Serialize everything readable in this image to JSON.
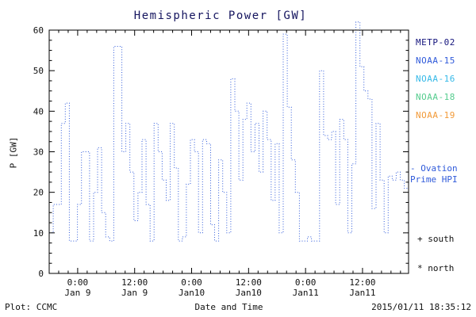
{
  "chart_data": {
    "type": "line",
    "style": "dotted-step-line",
    "title": "Hemispheric Power [GW]",
    "xlabel": "Date and Time",
    "ylabel": "P [GW]",
    "ylim": [
      0,
      60
    ],
    "y_ticks": [
      0,
      10,
      20,
      30,
      40,
      50,
      60
    ],
    "grid": false,
    "legend_position": "right",
    "x_range_hours": [
      0,
      75.7
    ],
    "x_ticks": [
      {
        "hour": 6,
        "time": "0:00",
        "date": "Jan 9"
      },
      {
        "hour": 18,
        "time": "12:00",
        "date": "Jan 9"
      },
      {
        "hour": 30,
        "time": "0:00",
        "date": "Jan10"
      },
      {
        "hour": 42,
        "time": "12:00",
        "date": "Jan10"
      },
      {
        "hour": 54,
        "time": "0:00",
        "date": "Jan11"
      },
      {
        "hour": 66,
        "time": "12:00",
        "date": "Jan11"
      }
    ],
    "series": [
      {
        "name": "Ovation Prime HPI",
        "color": "#2f5ada",
        "start_hour": 0,
        "dt_hours": 0.85,
        "values": [
          10,
          17,
          17,
          37,
          42,
          8,
          8,
          17,
          30,
          30,
          8,
          20,
          31,
          15,
          9,
          8,
          56,
          56,
          30,
          37,
          25,
          13,
          20,
          33,
          17,
          8,
          37,
          30,
          23,
          18,
          37,
          26,
          8,
          9,
          22,
          33,
          30,
          10,
          33,
          32,
          12,
          8,
          28,
          20,
          10,
          48,
          40,
          23,
          38,
          42,
          30,
          37,
          25,
          40,
          33,
          18,
          32,
          10,
          59,
          41,
          28,
          20,
          8,
          8,
          9,
          8,
          8,
          50,
          34,
          33,
          35,
          17,
          38,
          33,
          10,
          27,
          62,
          51,
          45,
          43,
          16,
          37,
          23,
          10,
          24,
          23,
          25,
          23,
          21
        ]
      }
    ]
  },
  "legend": {
    "satellites": [
      {
        "label": "METP-02",
        "color": "#15157d"
      },
      {
        "label": "NOAA-15",
        "color": "#2f5ada"
      },
      {
        "label": "NOAA-16",
        "color": "#36b9e8"
      },
      {
        "label": "NOAA-18",
        "color": "#55cc8e"
      },
      {
        "label": "NOAA-19",
        "color": "#f29a38"
      }
    ],
    "ovation_line1": "- Ovation",
    "ovation_line2": "Prime HPI",
    "ovation_color": "#2f5ada",
    "markers": [
      {
        "symbol": "+",
        "label": "south"
      },
      {
        "symbol": "*",
        "label": "north"
      }
    ]
  },
  "footer": {
    "credit": "Plot: CCMC",
    "timestamp": "2015/01/11 18:35:12"
  }
}
